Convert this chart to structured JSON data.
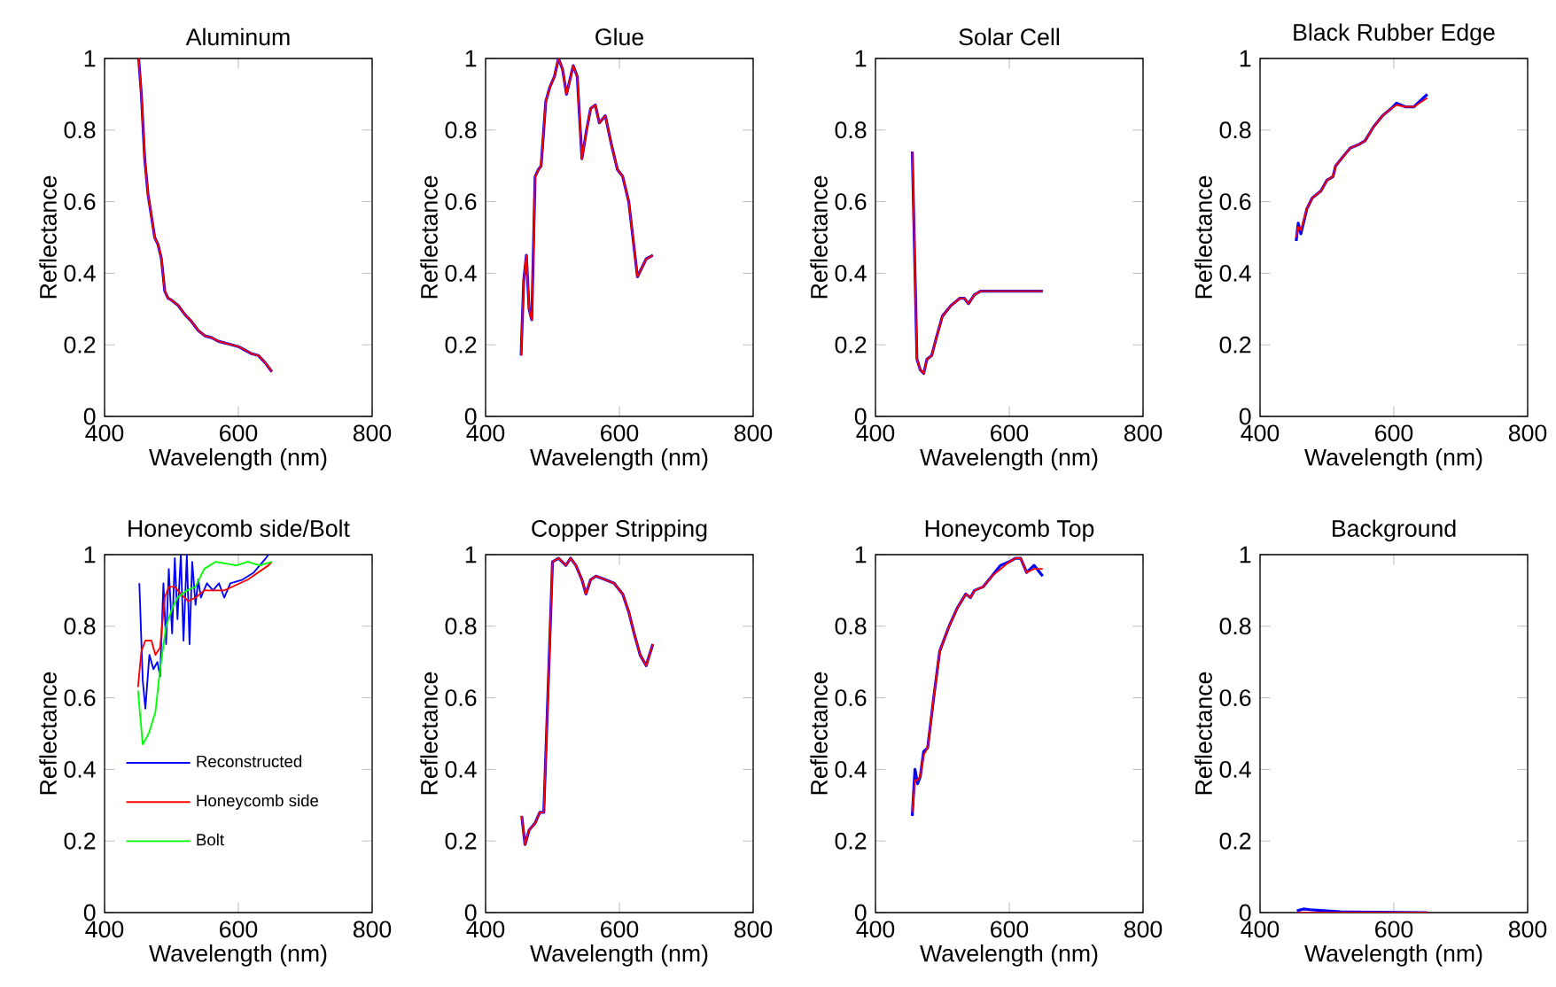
{
  "chart_data": [
    {
      "type": "line",
      "title": "Aluminum",
      "xlabel": "Wavelength (nm)",
      "ylabel": "Reflectance",
      "xlim": [
        400,
        800
      ],
      "xticks": [
        400,
        600,
        800
      ],
      "ylim": [
        0,
        1
      ],
      "yticks": [
        0,
        0.2,
        0.4,
        0.6,
        0.8,
        1
      ],
      "x": [
        451,
        455,
        460,
        465,
        470,
        475,
        480,
        485,
        490,
        495,
        500,
        510,
        520,
        530,
        540,
        550,
        560,
        570,
        580,
        590,
        600,
        610,
        620,
        630,
        640,
        650
      ],
      "series": [
        {
          "color": "#0000ff",
          "values": [
            1.0,
            0.9,
            0.72,
            0.62,
            0.56,
            0.5,
            0.48,
            0.44,
            0.35,
            0.33,
            0.325,
            0.31,
            0.285,
            0.265,
            0.24,
            0.225,
            0.22,
            0.21,
            0.205,
            0.2,
            0.195,
            0.185,
            0.175,
            0.17,
            0.15,
            0.125
          ]
        },
        {
          "color": "#ff0000",
          "values": [
            1.0,
            0.9,
            0.72,
            0.62,
            0.56,
            0.5,
            0.48,
            0.44,
            0.35,
            0.33,
            0.325,
            0.31,
            0.285,
            0.265,
            0.24,
            0.225,
            0.22,
            0.21,
            0.205,
            0.2,
            0.195,
            0.185,
            0.175,
            0.17,
            0.15,
            0.125
          ]
        }
      ]
    },
    {
      "type": "line",
      "title": "Glue",
      "xlabel": "Wavelength (nm)",
      "ylabel": "Reflectance",
      "xlim": [
        400,
        800
      ],
      "xticks": [
        400,
        600,
        800
      ],
      "ylim": [
        0,
        1
      ],
      "yticks": [
        0,
        0.2,
        0.4,
        0.6,
        0.8,
        1
      ],
      "x": [
        453,
        457,
        461,
        465,
        469,
        474,
        479,
        483,
        490,
        496,
        503,
        509,
        515,
        521,
        531,
        537,
        544,
        551,
        557,
        564,
        570,
        579,
        588,
        597,
        605,
        614,
        627,
        640,
        650
      ],
      "series": [
        {
          "color": "#0000ff",
          "values": [
            0.17,
            0.38,
            0.45,
            0.3,
            0.27,
            0.67,
            0.69,
            0.7,
            0.88,
            0.92,
            0.95,
            1.0,
            0.97,
            0.9,
            0.98,
            0.95,
            0.72,
            0.8,
            0.86,
            0.87,
            0.82,
            0.84,
            0.76,
            0.69,
            0.67,
            0.6,
            0.39,
            0.44,
            0.45
          ]
        },
        {
          "color": "#ff0000",
          "values": [
            0.17,
            0.38,
            0.45,
            0.3,
            0.27,
            0.67,
            0.69,
            0.7,
            0.88,
            0.92,
            0.95,
            1.0,
            0.97,
            0.9,
            0.98,
            0.95,
            0.72,
            0.8,
            0.86,
            0.87,
            0.82,
            0.84,
            0.76,
            0.69,
            0.67,
            0.6,
            0.39,
            0.44,
            0.45
          ]
        }
      ]
    },
    {
      "type": "line",
      "title": "Solar Cell",
      "xlabel": "Wavelength (nm)",
      "ylabel": "Reflectance",
      "xlim": [
        400,
        800
      ],
      "xticks": [
        400,
        600,
        800
      ],
      "ylim": [
        0,
        1
      ],
      "yticks": [
        0,
        0.2,
        0.4,
        0.6,
        0.8,
        1
      ],
      "x": [
        455,
        462,
        467,
        472,
        477,
        484,
        491,
        500,
        513,
        526,
        533,
        539,
        548,
        557,
        604,
        650
      ],
      "series": [
        {
          "color": "#0000ff",
          "values": [
            0.74,
            0.16,
            0.13,
            0.12,
            0.16,
            0.17,
            0.22,
            0.28,
            0.31,
            0.33,
            0.33,
            0.315,
            0.34,
            0.35,
            0.35,
            0.35
          ]
        },
        {
          "color": "#ff0000",
          "values": [
            0.74,
            0.16,
            0.13,
            0.12,
            0.16,
            0.17,
            0.22,
            0.28,
            0.31,
            0.33,
            0.33,
            0.315,
            0.34,
            0.35,
            0.35,
            0.35
          ]
        }
      ]
    },
    {
      "type": "line",
      "title": "Black Rubber Edge",
      "xlabel": "Wavelength (nm)",
      "ylabel": "Reflectance",
      "xlim": [
        400,
        800
      ],
      "xticks": [
        400,
        600,
        800
      ],
      "ylim": [
        0,
        1
      ],
      "yticks": [
        0,
        0.2,
        0.4,
        0.6,
        0.8,
        1
      ],
      "x": [
        454,
        457,
        461,
        470,
        478,
        491,
        500,
        509,
        513,
        526,
        535,
        548,
        557,
        570,
        583,
        596,
        604,
        617,
        630,
        650
      ],
      "series": [
        {
          "color": "#0000ff",
          "values": [
            0.49,
            0.54,
            0.51,
            0.58,
            0.61,
            0.63,
            0.66,
            0.67,
            0.7,
            0.73,
            0.75,
            0.76,
            0.77,
            0.81,
            0.84,
            0.86,
            0.875,
            0.865,
            0.865,
            0.9
          ]
        },
        {
          "color": "#ff0000",
          "values": [
            0.5,
            0.53,
            0.52,
            0.58,
            0.61,
            0.63,
            0.66,
            0.67,
            0.7,
            0.73,
            0.75,
            0.76,
            0.77,
            0.81,
            0.84,
            0.86,
            0.87,
            0.865,
            0.865,
            0.89
          ]
        }
      ]
    },
    {
      "type": "line",
      "title": "Honeycomb side/Bolt",
      "xlabel": "Wavelength (nm)",
      "ylabel": "Reflectance",
      "xlim": [
        400,
        800
      ],
      "xticks": [
        400,
        600,
        800
      ],
      "ylim": [
        0,
        1
      ],
      "yticks": [
        0,
        0.2,
        0.4,
        0.6,
        0.8,
        1
      ],
      "legend": "bottom left",
      "series": [
        {
          "name": "Reconstructed",
          "color": "#0000ff",
          "x": [
            452,
            457,
            461,
            467,
            473,
            479,
            483,
            488,
            492,
            496,
            501,
            505,
            509,
            514,
            518,
            523,
            527,
            531,
            536,
            540,
            544,
            553,
            562,
            571,
            579,
            588,
            606,
            623,
            641,
            645
          ],
          "values": [
            0.92,
            0.65,
            0.57,
            0.72,
            0.68,
            0.7,
            0.66,
            0.92,
            0.75,
            0.96,
            0.78,
            0.99,
            0.82,
            1.0,
            0.76,
            1.0,
            0.75,
            0.98,
            0.86,
            0.93,
            0.88,
            0.92,
            0.9,
            0.92,
            0.88,
            0.92,
            0.93,
            0.95,
            0.99,
            1.0
          ]
        },
        {
          "name": "Honeycomb side",
          "color": "#ff0000",
          "x": [
            450,
            455,
            461,
            470,
            476,
            483,
            490,
            496,
            505,
            514,
            525,
            536,
            549,
            579,
            614,
            645,
            650
          ],
          "values": [
            0.63,
            0.73,
            0.76,
            0.76,
            0.72,
            0.74,
            0.88,
            0.91,
            0.91,
            0.89,
            0.87,
            0.88,
            0.9,
            0.9,
            0.93,
            0.97,
            0.98
          ]
        },
        {
          "name": "Bolt",
          "color": "#00ff00",
          "x": [
            450,
            457,
            466,
            476,
            483,
            492,
            501,
            509,
            523,
            536,
            549,
            566,
            597,
            614,
            632,
            650
          ],
          "values": [
            0.62,
            0.47,
            0.5,
            0.56,
            0.68,
            0.8,
            0.85,
            0.88,
            0.9,
            0.91,
            0.96,
            0.98,
            0.97,
            0.98,
            0.97,
            0.98
          ]
        }
      ]
    },
    {
      "type": "line",
      "title": "Copper Stripping",
      "xlabel": "Wavelength (nm)",
      "ylabel": "Reflectance",
      "xlim": [
        400,
        800
      ],
      "xticks": [
        400,
        600,
        800
      ],
      "ylim": [
        0,
        1
      ],
      "yticks": [
        0,
        0.2,
        0.4,
        0.6,
        0.8,
        1
      ],
      "x": [
        454,
        459,
        465,
        474,
        481,
        487,
        493,
        500,
        509,
        520,
        527,
        535,
        544,
        550,
        557,
        565,
        579,
        592,
        605,
        614,
        622,
        631,
        640,
        650
      ],
      "series": [
        {
          "color": "#0000ff",
          "values": [
            0.27,
            0.19,
            0.23,
            0.25,
            0.28,
            0.28,
            0.6,
            0.98,
            0.99,
            0.97,
            0.99,
            0.97,
            0.93,
            0.89,
            0.93,
            0.94,
            0.93,
            0.92,
            0.89,
            0.84,
            0.78,
            0.72,
            0.69,
            0.75
          ]
        },
        {
          "color": "#ff0000",
          "values": [
            0.27,
            0.19,
            0.23,
            0.25,
            0.28,
            0.28,
            0.6,
            0.98,
            0.99,
            0.97,
            0.99,
            0.97,
            0.93,
            0.89,
            0.93,
            0.94,
            0.93,
            0.92,
            0.89,
            0.84,
            0.78,
            0.72,
            0.69,
            0.75
          ]
        }
      ]
    },
    {
      "type": "line",
      "title": "Honeycomb Top",
      "xlabel": "Wavelength (nm)",
      "ylabel": "Reflectance",
      "xlim": [
        400,
        800
      ],
      "xticks": [
        400,
        600,
        800
      ],
      "ylim": [
        0,
        1
      ],
      "yticks": [
        0,
        0.2,
        0.4,
        0.6,
        0.8,
        1
      ],
      "x": [
        455,
        459,
        463,
        467,
        472,
        478,
        487,
        496,
        504,
        510,
        522,
        535,
        542,
        548,
        561,
        574,
        587,
        600,
        609,
        617,
        626,
        637,
        650
      ],
      "series": [
        {
          "color": "#0000ff",
          "values": [
            0.27,
            0.4,
            0.36,
            0.38,
            0.45,
            0.46,
            0.6,
            0.73,
            0.77,
            0.8,
            0.85,
            0.89,
            0.88,
            0.9,
            0.91,
            0.94,
            0.97,
            0.98,
            0.99,
            0.99,
            0.95,
            0.97,
            0.94
          ]
        },
        {
          "color": "#ff0000",
          "values": [
            0.28,
            0.37,
            0.37,
            0.38,
            0.44,
            0.46,
            0.6,
            0.73,
            0.77,
            0.8,
            0.85,
            0.89,
            0.88,
            0.9,
            0.91,
            0.94,
            0.96,
            0.98,
            0.99,
            0.99,
            0.95,
            0.96,
            0.96
          ]
        }
      ]
    },
    {
      "type": "line",
      "title": "Background",
      "xlabel": "Wavelength (nm)",
      "ylabel": "Reflectance",
      "xlim": [
        400,
        800
      ],
      "xticks": [
        400,
        600,
        800
      ],
      "ylim": [
        0,
        1
      ],
      "yticks": [
        0,
        0.2,
        0.4,
        0.6,
        0.8,
        1
      ],
      "series": [
        {
          "color": "#0000ff",
          "x": [
            455,
            465,
            475,
            490,
            505,
            520,
            650
          ],
          "values": [
            0.005,
            0.01,
            0.008,
            0.006,
            0.004,
            0.002,
            0
          ]
        },
        {
          "color": "#ff0000",
          "x": [
            455,
            650
          ],
          "values": [
            0,
            0
          ]
        }
      ]
    }
  ]
}
